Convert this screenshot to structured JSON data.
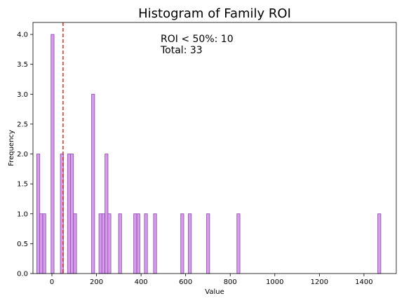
{
  "chart_data": {
    "type": "bar",
    "title": "Histogram of Family ROI",
    "xlabel": "Value",
    "ylabel": "Frequency",
    "xlim": [
      -85,
      1545
    ],
    "ylim": [
      0,
      4.2
    ],
    "xticks": [
      0,
      200,
      400,
      600,
      800,
      1000,
      1200,
      1400
    ],
    "yticks": [
      0.0,
      0.5,
      1.0,
      1.5,
      2.0,
      2.5,
      3.0,
      3.5,
      4.0
    ],
    "bin_width": 13.6,
    "bins": [
      {
        "x": -68,
        "count": 2
      },
      {
        "x": -55,
        "count": 1
      },
      {
        "x": -41,
        "count": 1
      },
      {
        "x": -4,
        "count": 4
      },
      {
        "x": 38,
        "count": 2
      },
      {
        "x": 70,
        "count": 2
      },
      {
        "x": 83,
        "count": 2
      },
      {
        "x": 97,
        "count": 1
      },
      {
        "x": 178,
        "count": 3
      },
      {
        "x": 211,
        "count": 1
      },
      {
        "x": 224,
        "count": 1
      },
      {
        "x": 238,
        "count": 2
      },
      {
        "x": 251,
        "count": 1
      },
      {
        "x": 299,
        "count": 1
      },
      {
        "x": 367,
        "count": 1
      },
      {
        "x": 381,
        "count": 1
      },
      {
        "x": 415,
        "count": 1
      },
      {
        "x": 456,
        "count": 1
      },
      {
        "x": 578,
        "count": 1
      },
      {
        "x": 612,
        "count": 1
      },
      {
        "x": 694,
        "count": 1
      },
      {
        "x": 830,
        "count": 1
      },
      {
        "x": 1462,
        "count": 1
      }
    ],
    "reference_line": {
      "x": 50,
      "style": "dashed",
      "color": "#e8291c"
    },
    "annotation": [
      "ROI < 50%: 10",
      "Total: 33"
    ],
    "colors": {
      "bar_fill": "#d79bec",
      "bar_edge": "#8a4ba8",
      "axis": "#000000"
    },
    "grid": false,
    "legend": "none"
  }
}
